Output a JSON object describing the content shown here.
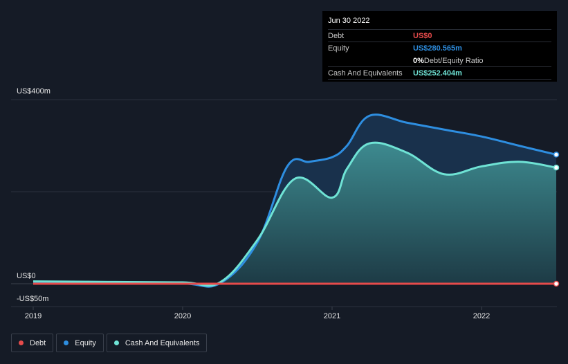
{
  "tooltip": {
    "date": "Jun 30 2022",
    "rows": [
      {
        "label": "Debt",
        "value": "US$0",
        "color": "#e64b4b"
      },
      {
        "label": "Equity",
        "value": "US$280.565m",
        "color": "#2e8ee0"
      },
      {
        "label": "",
        "value": "0%",
        "suffix": " Debt/Equity Ratio",
        "color": "#ffffff"
      },
      {
        "label": "Cash And Equivalents",
        "value": "US$252.404m",
        "color": "#6fe3d5"
      }
    ]
  },
  "legend": [
    {
      "label": "Debt",
      "color": "#e64b4b"
    },
    {
      "label": "Equity",
      "color": "#2e8ee0"
    },
    {
      "label": "Cash And Equivalents",
      "color": "#6fe3d5"
    }
  ],
  "chart_data": {
    "type": "area",
    "y_tick_labels": [
      "US$400m",
      "US$0",
      "-US$50m"
    ],
    "x_tick_labels": [
      "2019",
      "2020",
      "2021",
      "2022"
    ],
    "ylim": [
      -50,
      400
    ],
    "x_range": [
      2019.0,
      2022.5
    ],
    "x_ticks": [
      2019,
      2020,
      2021,
      2022
    ],
    "grid": true,
    "series": [
      {
        "name": "Equity",
        "color": "#2e8ee0",
        "x": [
          2019.0,
          2019.5,
          2020.0,
          2020.25,
          2020.5,
          2020.7,
          2020.85,
          2021.0,
          2021.1,
          2021.25,
          2021.5,
          2021.75,
          2022.0,
          2022.25,
          2022.5
        ],
        "y": [
          3,
          2,
          0.5,
          1,
          90,
          255,
          265,
          275,
          300,
          365,
          350,
          335,
          320,
          300,
          280.565
        ]
      },
      {
        "name": "Cash And Equivalents",
        "color": "#6fe3d5",
        "x": [
          2019.0,
          2019.5,
          2020.0,
          2020.25,
          2020.5,
          2020.75,
          2021.0,
          2021.1,
          2021.25,
          2021.5,
          2021.75,
          2022.0,
          2022.25,
          2022.5
        ],
        "y": [
          5,
          4,
          3,
          3,
          95,
          228,
          187,
          250,
          305,
          285,
          238,
          255,
          265,
          252.404
        ]
      },
      {
        "name": "Debt",
        "color": "#e64b4b",
        "x": [
          2019.0,
          2022.5
        ],
        "y": [
          0,
          0
        ]
      }
    ]
  }
}
